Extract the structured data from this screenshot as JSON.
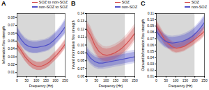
{
  "chart_data": [
    {
      "type": "line",
      "title": "A",
      "xlabel": "Frequency (Hz)",
      "ylabel": "Information flow strength",
      "x": [
        0,
        20.833333333333332,
        41.666666666666664,
        62.5,
        83.33333333333333,
        104.16666666666666,
        125,
        145.83333333333331,
        166.66666666666666,
        187.5,
        208.33333333333331,
        229.16666666666666,
        250
      ],
      "series": [
        {
          "name": "SOZ to non-SOZ",
          "color": "#d45050",
          "values": [
            0.045,
            0.038,
            0.03,
            0.024,
            0.02,
            0.018,
            0.018,
            0.02,
            0.023,
            0.028,
            0.033,
            0.039,
            0.046
          ],
          "upper": [
            0.05,
            0.043,
            0.035,
            0.029,
            0.025,
            0.023,
            0.023,
            0.025,
            0.028,
            0.033,
            0.038,
            0.044,
            0.051
          ],
          "lower": [
            0.04,
            0.033,
            0.025,
            0.019,
            0.015,
            0.013,
            0.013,
            0.015,
            0.018,
            0.023,
            0.028,
            0.034,
            0.041
          ],
          "outer_upper": [
            0.0515,
            0.04429,
            0.03605,
            0.02987,
            0.02575,
            0.02369,
            0.02369,
            0.02575,
            0.02884,
            0.03399,
            0.03914,
            0.04532,
            0.05253
          ],
          "outer_lower": [
            0.0388,
            0.03201,
            0.02425,
            0.01843,
            0.01455,
            0.01261,
            0.01261,
            0.01455,
            0.01746,
            0.02231,
            0.02716,
            0.03298,
            0.03977
          ]
        },
        {
          "name": "non-SOZ to SOZ",
          "color": "#5050c8",
          "values": [
            0.06,
            0.052,
            0.046,
            0.043,
            0.042,
            0.042,
            0.043,
            0.044,
            0.046,
            0.05,
            0.055,
            0.061,
            0.068
          ],
          "upper": [
            0.067,
            0.059,
            0.053,
            0.05,
            0.049,
            0.049,
            0.05,
            0.051,
            0.053,
            0.057,
            0.062,
            0.068,
            0.076
          ],
          "lower": [
            0.053,
            0.045,
            0.039,
            0.036,
            0.035,
            0.035,
            0.036,
            0.037,
            0.039,
            0.043,
            0.048,
            0.054,
            0.06
          ],
          "outer_upper": [
            0.06901,
            0.06077,
            0.05459,
            0.0515,
            0.05047,
            0.05047,
            0.0515,
            0.05253,
            0.05459,
            0.05871,
            0.06386,
            0.07004,
            0.07828
          ],
          "outer_lower": [
            0.05141,
            0.04365,
            0.03783,
            0.03492,
            0.03395,
            0.03395,
            0.03492,
            0.03589,
            0.03783,
            0.04171,
            0.04656,
            0.05238,
            0.0582
          ]
        }
      ],
      "shaded_region": {
        "x": [
          0,
          200
        ],
        "color": "#c8c8c8"
      },
      "xlim": [
        0,
        250
      ],
      "xticks": [
        0,
        50,
        100,
        150,
        200,
        250
      ],
      "ylim": [
        0.005,
        0.085
      ],
      "yticks": [
        0.01,
        0.02,
        0.03,
        0.04,
        0.05,
        0.06,
        0.07,
        0.08
      ],
      "legend": "upper right",
      "grid": false
    },
    {
      "type": "line",
      "title": "B",
      "xlabel": "Frequency (Hz)",
      "ylabel": "Inward information flow strength",
      "x": [
        0,
        20.833333333333332,
        41.666666666666664,
        62.5,
        83.33333333333333,
        104.16666666666666,
        125,
        145.83333333333331,
        166.66666666666666,
        187.5,
        208.33333333333331,
        229.16666666666666,
        250
      ],
      "series": [
        {
          "name": "SOZ",
          "color": "#d45050",
          "values": [
            0.12,
            0.112,
            0.1,
            0.092,
            0.088,
            0.087,
            0.088,
            0.09,
            0.093,
            0.097,
            0.102,
            0.108,
            0.115
          ],
          "upper": [
            0.128,
            0.12,
            0.108,
            0.1,
            0.096,
            0.095,
            0.096,
            0.098,
            0.101,
            0.105,
            0.11,
            0.116,
            0.123
          ],
          "lower": [
            0.112,
            0.104,
            0.092,
            0.084,
            0.08,
            0.079,
            0.08,
            0.082,
            0.085,
            0.089,
            0.094,
            0.1,
            0.107
          ],
          "outer_upper": [
            0.13184,
            0.1236,
            0.11124,
            0.103,
            0.09888,
            0.09785,
            0.09888,
            0.10094,
            0.10403,
            0.10815,
            0.1133,
            0.11948,
            0.12669
          ],
          "outer_lower": [
            0.10864,
            0.10088,
            0.08924,
            0.08148,
            0.0776,
            0.07663,
            0.0776,
            0.07954,
            0.08245,
            0.08633,
            0.09118,
            0.097,
            0.10379
          ]
        },
        {
          "name": "non-SOZ",
          "color": "#5050c8",
          "values": [
            0.09,
            0.083,
            0.079,
            0.077,
            0.077,
            0.078,
            0.079,
            0.08,
            0.081,
            0.082,
            0.083,
            0.084,
            0.085
          ],
          "upper": [
            0.096,
            0.089,
            0.085,
            0.083,
            0.083,
            0.084,
            0.085,
            0.086,
            0.087,
            0.088,
            0.089,
            0.09,
            0.091
          ],
          "lower": [
            0.084,
            0.077,
            0.073,
            0.071,
            0.071,
            0.072,
            0.073,
            0.074,
            0.075,
            0.076,
            0.077,
            0.078,
            0.079
          ],
          "outer_upper": [
            0.09888,
            0.09167,
            0.08755,
            0.08549,
            0.08549,
            0.08652,
            0.08755,
            0.08858,
            0.08961,
            0.09064,
            0.09167,
            0.0927,
            0.09373
          ],
          "outer_lower": [
            0.08148,
            0.07469,
            0.07081,
            0.06887,
            0.06887,
            0.06984,
            0.07081,
            0.07178,
            0.07275,
            0.07372,
            0.07469,
            0.07566,
            0.07663
          ]
        }
      ],
      "shaded_region": {
        "x": [
          0,
          200
        ],
        "color": "#c8c8c8"
      },
      "xlim": [
        0,
        250
      ],
      "xticks": [
        0,
        50,
        100,
        150,
        200,
        250
      ],
      "ylim": [
        0.06,
        0.14
      ],
      "yticks": [
        0.06,
        0.07,
        0.08,
        0.09,
        {
          "value": 0.1,
          "label": "0.10"
        },
        0.11,
        0.12,
        0.13,
        0.14
      ],
      "legend": "upper right",
      "grid": false
    },
    {
      "type": "line",
      "title": "C",
      "xlabel": "Frequency (Hz)",
      "ylabel": "Outward information flow strength",
      "x": [
        0,
        20.833333333333332,
        41.666666666666664,
        62.5,
        83.33333333333333,
        104.16666666666666,
        125,
        145.83333333333331,
        166.66666666666666,
        187.5,
        208.33333333333331,
        229.16666666666666,
        250
      ],
      "series": [
        {
          "name": "SOZ",
          "color": "#d45050",
          "values": [
            0.09,
            0.08,
            0.069,
            0.062,
            0.057,
            0.055,
            0.056,
            0.058,
            0.062,
            0.066,
            0.071,
            0.076,
            0.082
          ],
          "upper": [
            0.097,
            0.087,
            0.076,
            0.069,
            0.064,
            0.062,
            0.063,
            0.065,
            0.069,
            0.073,
            0.078,
            0.083,
            0.089
          ],
          "lower": [
            0.083,
            0.073,
            0.062,
            0.055,
            0.05,
            0.048,
            0.049,
            0.051,
            0.055,
            0.059,
            0.064,
            0.069,
            0.075
          ],
          "outer_upper": [
            0.09991,
            0.08961,
            0.07828,
            0.07107,
            0.06592,
            0.06386,
            0.06489,
            0.06695,
            0.07107,
            0.07519,
            0.08034,
            0.08549,
            0.09167
          ],
          "outer_lower": [
            0.08051,
            0.07081,
            0.06014,
            0.05335,
            0.0485,
            0.04656,
            0.04753,
            0.04947,
            0.05335,
            0.05723,
            0.06208,
            0.06693,
            0.07275
          ]
        },
        {
          "name": "non-SOZ",
          "color": "#5050c8",
          "values": [
            0.082,
            0.073,
            0.067,
            0.064,
            0.063,
            0.064,
            0.065,
            0.067,
            0.07,
            0.074,
            0.08,
            0.087,
            0.096
          ],
          "upper": [
            0.091,
            0.082,
            0.076,
            0.073,
            0.072,
            0.073,
            0.074,
            0.076,
            0.079,
            0.083,
            0.089,
            0.096,
            0.105
          ],
          "lower": [
            0.073,
            0.064,
            0.058,
            0.055,
            0.054,
            0.055,
            0.056,
            0.058,
            0.061,
            0.065,
            0.071,
            0.078,
            0.087
          ],
          "outer_upper": [
            0.09373,
            0.08446,
            0.07828,
            0.07519,
            0.07416,
            0.07519,
            0.07622,
            0.07828,
            0.08137,
            0.08549,
            0.09167,
            0.09888,
            0.10815
          ],
          "outer_lower": [
            0.07081,
            0.06208,
            0.05626,
            0.05335,
            0.05238,
            0.05335,
            0.05432,
            0.05626,
            0.05917,
            0.06305,
            0.06887,
            0.07566,
            0.08439
          ]
        }
      ],
      "shaded_region": {
        "x": [
          0,
          200
        ],
        "color": "#c8c8c8"
      },
      "xlim": [
        0,
        250
      ],
      "xticks": [
        0,
        50,
        100,
        150,
        200,
        250
      ],
      "ylim": [
        0.01,
        0.11
      ],
      "yticks": [
        0.01,
        0.02,
        0.03,
        0.04,
        0.05,
        0.06,
        0.07,
        0.08,
        0.09,
        {
          "value": 0.1,
          "label": "0.10"
        },
        0.11
      ],
      "legend": "upper right",
      "grid": false
    }
  ]
}
